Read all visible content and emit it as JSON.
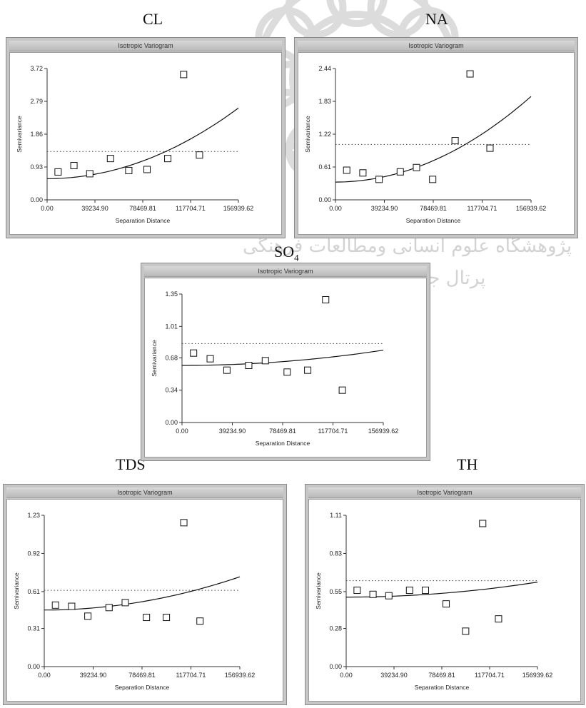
{
  "watermark": {
    "line1": "پژوهشگاه علوم انسانی ومطالعات فرهنگی",
    "line2": "پرتال جامع علوم انسانی"
  },
  "chart_data": [
    {
      "type": "scatter",
      "label": "CL",
      "title": "Isotropic Variogram",
      "xlabel": "Separation Distance",
      "ylabel": "Semivariance",
      "xlim": [
        0,
        156939.62
      ],
      "ylim": [
        0,
        3.72
      ],
      "xticks": [
        0,
        39234.9,
        78469.81,
        117704.71,
        156939.62
      ],
      "xtick_labels": [
        "0.00",
        "39234.90",
        "78469.81",
        "117704.71",
        "156939.62"
      ],
      "yticks": [
        0,
        0.93,
        1.86,
        2.79,
        3.72
      ],
      "ytick_labels": [
        "0.00",
        "0.93",
        "1.86",
        "2.79",
        "3.72"
      ],
      "points": [
        [
          9000,
          0.79
        ],
        [
          22000,
          0.97
        ],
        [
          35000,
          0.74
        ],
        [
          52000,
          1.17
        ],
        [
          67000,
          0.83
        ],
        [
          82000,
          0.86
        ],
        [
          99000,
          1.17
        ],
        [
          112000,
          3.55
        ],
        [
          125000,
          1.27
        ]
      ],
      "fit": {
        "nugget": 0.6,
        "x_end": 156939.62,
        "y_end": 2.6
      },
      "sill": 1.37
    },
    {
      "type": "scatter",
      "label": "NA",
      "title": "Isotropic Variogram",
      "xlabel": "Separation Distance",
      "ylabel": "Semivariance",
      "xlim": [
        0,
        156939.62
      ],
      "ylim": [
        0,
        2.44
      ],
      "xticks": [
        0,
        39234.9,
        78469.81,
        117704.71,
        156939.62
      ],
      "xtick_labels": [
        "0.00",
        "39234.90",
        "78469.81",
        "117704.71",
        "156939.62"
      ],
      "yticks": [
        0,
        0.61,
        1.22,
        1.83,
        2.44
      ],
      "ytick_labels": [
        "0.00",
        "0.61",
        "1.22",
        "1.83",
        "2.44"
      ],
      "points": [
        [
          9000,
          0.55
        ],
        [
          22000,
          0.5
        ],
        [
          35000,
          0.38
        ],
        [
          52000,
          0.52
        ],
        [
          65000,
          0.6
        ],
        [
          78000,
          0.38
        ],
        [
          96000,
          1.1
        ],
        [
          108000,
          2.34
        ],
        [
          124000,
          0.96
        ]
      ],
      "fit": {
        "nugget": 0.33,
        "x_end": 156939.62,
        "y_end": 1.92
      },
      "sill": 1.03
    },
    {
      "type": "scatter",
      "label": "SO4",
      "label_main": "SO",
      "label_sub": "4",
      "title": "Isotropic Variogram",
      "xlabel": "Separation Distance",
      "ylabel": "Semivariance",
      "xlim": [
        0,
        156939.62
      ],
      "ylim": [
        0,
        1.35
      ],
      "xticks": [
        0,
        39234.9,
        78469.81,
        117704.71,
        156939.62
      ],
      "xtick_labels": [
        "0.00",
        "39234.90",
        "78469.81",
        "117704.71",
        "156939.62"
      ],
      "yticks": [
        0,
        0.34,
        0.68,
        1.01,
        1.35
      ],
      "ytick_labels": [
        "0.00",
        "0.34",
        "0.68",
        "1.01",
        "1.35"
      ],
      "points": [
        [
          9000,
          0.73
        ],
        [
          22000,
          0.67
        ],
        [
          35000,
          0.55
        ],
        [
          52000,
          0.6
        ],
        [
          65000,
          0.65
        ],
        [
          82000,
          0.53
        ],
        [
          98000,
          0.55
        ],
        [
          112000,
          1.29
        ],
        [
          125000,
          0.34
        ]
      ],
      "fit": {
        "nugget": 0.6,
        "x_end": 156939.62,
        "y_end": 0.76
      },
      "sill": 0.83
    },
    {
      "type": "scatter",
      "label": "TDS",
      "title": "Isotropic Variogram",
      "xlabel": "Separation Distance",
      "ylabel": "Semivariance",
      "xlim": [
        0,
        156939.62
      ],
      "ylim": [
        0,
        1.23
      ],
      "xticks": [
        0,
        39234.9,
        78469.81,
        117704.71,
        156939.62
      ],
      "xtick_labels": [
        "0.00",
        "39234.90",
        "78469.81",
        "117704.71",
        "156939.62"
      ],
      "yticks": [
        0,
        0.31,
        0.61,
        0.92,
        1.23
      ],
      "ytick_labels": [
        "0.00",
        "0.31",
        "0.61",
        "0.92",
        "1.23"
      ],
      "points": [
        [
          9000,
          0.5
        ],
        [
          22000,
          0.49
        ],
        [
          35000,
          0.41
        ],
        [
          52000,
          0.48
        ],
        [
          65000,
          0.52
        ],
        [
          82000,
          0.4
        ],
        [
          98000,
          0.4
        ],
        [
          112000,
          1.17
        ],
        [
          125000,
          0.37
        ]
      ],
      "fit": {
        "nugget": 0.46,
        "x_end": 156939.62,
        "y_end": 0.73
      },
      "sill": 0.62
    },
    {
      "type": "scatter",
      "label": "TH",
      "title": "Isotropic Variogram",
      "xlabel": "Separation Distance",
      "ylabel": "Semivariance",
      "xlim": [
        0,
        156939.62
      ],
      "ylim": [
        0,
        1.11
      ],
      "xticks": [
        0,
        39234.9,
        78469.81,
        117704.71,
        156939.62
      ],
      "xtick_labels": [
        "0.00",
        "39234.90",
        "78469.81",
        "117704.71",
        "156939.62"
      ],
      "yticks": [
        0,
        0.28,
        0.55,
        0.83,
        1.11
      ],
      "ytick_labels": [
        "0.00",
        "0.28",
        "0.55",
        "0.83",
        "1.11"
      ],
      "points": [
        [
          9000,
          0.56
        ],
        [
          22000,
          0.53
        ],
        [
          35000,
          0.52
        ],
        [
          52000,
          0.56
        ],
        [
          65000,
          0.56
        ],
        [
          82000,
          0.46
        ],
        [
          98000,
          0.26
        ],
        [
          112000,
          1.05
        ],
        [
          125000,
          0.35
        ]
      ],
      "fit": {
        "nugget": 0.51,
        "x_end": 156939.62,
        "y_end": 0.62
      },
      "sill": 0.63
    }
  ]
}
